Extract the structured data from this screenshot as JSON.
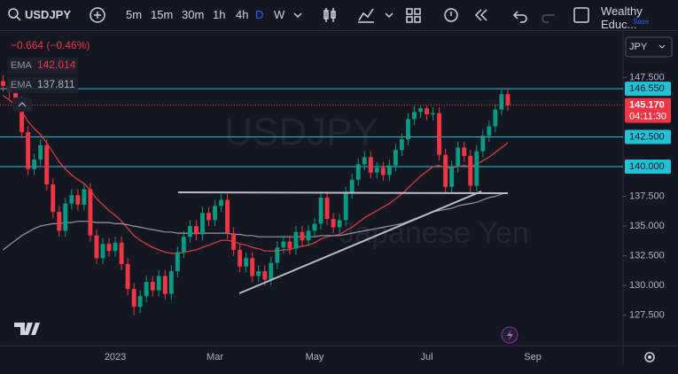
{
  "toolbar": {
    "symbol": "USDJPY",
    "timeframes": [
      "5m",
      "15m",
      "30m",
      "1h",
      "4h",
      "D",
      "W"
    ],
    "active_timeframe": "D",
    "account": "Wealthy Educ...",
    "save": "Save"
  },
  "legend": {
    "change": "−0.664 (−0.46%)",
    "currency": "JPY"
  },
  "chart_data": {
    "type": "candlestick",
    "watermark": [
      "USDJPY",
      "Japanese Yen"
    ],
    "categories": [
      null,
      null,
      null,
      null,
      null,
      null,
      null,
      null,
      null,
      null,
      null,
      null,
      null,
      null,
      null,
      null,
      null,
      null,
      "2023",
      null,
      null,
      null,
      null,
      null,
      null,
      null,
      null,
      null,
      null,
      null,
      null,
      null,
      null,
      null,
      "Mar",
      null,
      null,
      null,
      null,
      null,
      null,
      null,
      null,
      null,
      null,
      null,
      null,
      null,
      null,
      null,
      "May",
      null,
      null,
      null,
      null,
      null,
      null,
      null,
      null,
      null,
      null,
      null,
      null,
      null,
      null,
      null,
      null,
      null,
      "Jul",
      null,
      null,
      null,
      null,
      null,
      null,
      null,
      null,
      null,
      null,
      null,
      null,
      null,
      null,
      null,
      null,
      "Sep",
      null,
      null,
      null,
      null,
      null,
      null,
      null,
      null,
      null,
      null,
      null,
      null,
      null,
      null
    ],
    "open": [
      147.2,
      146.8,
      146.2,
      145.4,
      142.9,
      139.8,
      140.6,
      141.8,
      138.5,
      136.2,
      134.6,
      136.9,
      137.6,
      136.8,
      138.1,
      134.2,
      132.3,
      133.5,
      132.9,
      133.6,
      131.8,
      129.7,
      128.2,
      129.1,
      130.3,
      129.6,
      130.8,
      129.3,
      131.2,
      132.8,
      134.1,
      135.0,
      134.3,
      136.1,
      135.5,
      136.7,
      137.2,
      134.4,
      133.0,
      131.6,
      132.3,
      130.8,
      131.2,
      130.5,
      131.9,
      133.2,
      133.7,
      133.1,
      134.5,
      133.8,
      134.6,
      135.2,
      137.4,
      135.6,
      134.9,
      135.5,
      137.8,
      138.9,
      140.2,
      140.8,
      139.5,
      139.9,
      139.3,
      140.1,
      141.4,
      142.3,
      144.0,
      144.6,
      144.9,
      144.4,
      144.5,
      141.0,
      138.3,
      140.0,
      141.6,
      140.9,
      138.4,
      141.3,
      142.6,
      143.4,
      144.8,
      146.1,
      null,
      null,
      null,
      null,
      null,
      null,
      null,
      null,
      null,
      null,
      null,
      null,
      null,
      null,
      null,
      null,
      null,
      null
    ],
    "high": [
      147.7,
      147.3,
      146.7,
      145.9,
      143.4,
      141.1,
      142.3,
      142.3,
      139.0,
      136.7,
      137.4,
      138.1,
      138.1,
      138.6,
      138.6,
      134.7,
      134.0,
      134.0,
      134.1,
      134.1,
      132.3,
      130.2,
      129.6,
      130.8,
      130.8,
      131.3,
      131.3,
      131.7,
      133.3,
      134.6,
      135.5,
      135.5,
      136.6,
      136.6,
      137.2,
      137.7,
      137.7,
      134.9,
      133.5,
      132.8,
      132.8,
      131.7,
      131.7,
      132.4,
      133.7,
      134.2,
      134.2,
      135.0,
      135.0,
      135.1,
      135.7,
      137.9,
      137.9,
      136.1,
      136.0,
      138.3,
      139.4,
      140.7,
      141.3,
      141.3,
      140.4,
      140.4,
      140.6,
      141.9,
      142.8,
      144.5,
      145.1,
      145.1,
      145.1,
      145.0,
      145.0,
      141.5,
      140.5,
      142.1,
      142.1,
      141.4,
      141.8,
      143.1,
      143.9,
      145.3,
      146.6,
      146.6,
      null,
      null,
      null,
      null,
      null,
      null,
      null,
      null,
      null,
      null,
      null,
      null,
      null,
      null,
      null,
      null,
      null,
      null
    ],
    "low": [
      146.3,
      145.7,
      144.9,
      142.4,
      139.3,
      139.3,
      140.1,
      138.0,
      135.7,
      134.1,
      134.1,
      136.4,
      136.3,
      136.3,
      133.7,
      131.8,
      131.8,
      132.4,
      132.4,
      131.3,
      129.2,
      127.5,
      127.7,
      128.6,
      129.1,
      129.1,
      128.8,
      128.8,
      130.7,
      132.3,
      133.6,
      133.8,
      133.8,
      135.0,
      135.0,
      136.2,
      133.9,
      132.5,
      131.1,
      131.1,
      130.3,
      130.3,
      130.0,
      130.0,
      131.4,
      132.7,
      132.6,
      132.6,
      133.3,
      133.3,
      134.1,
      134.7,
      135.1,
      134.4,
      134.4,
      135.0,
      137.3,
      138.4,
      139.7,
      139.0,
      139.0,
      138.8,
      138.8,
      139.6,
      140.9,
      141.8,
      143.5,
      144.1,
      143.9,
      143.9,
      140.5,
      137.7,
      137.8,
      139.5,
      140.4,
      137.8,
      137.9,
      140.8,
      142.1,
      142.9,
      144.3,
      144.7,
      null,
      null,
      null,
      null,
      null,
      null,
      null,
      null,
      null,
      null,
      null,
      null,
      null,
      null,
      null,
      null,
      null,
      null
    ],
    "close": [
      146.8,
      146.2,
      145.4,
      142.9,
      139.8,
      140.6,
      141.8,
      138.5,
      136.2,
      134.6,
      136.9,
      137.6,
      136.8,
      138.1,
      134.2,
      132.3,
      133.5,
      132.9,
      133.6,
      131.8,
      129.7,
      128.2,
      129.1,
      130.3,
      129.6,
      130.8,
      129.3,
      131.2,
      132.8,
      134.1,
      135.0,
      134.3,
      136.1,
      135.5,
      136.7,
      137.2,
      134.4,
      133.0,
      131.6,
      132.3,
      130.8,
      131.2,
      130.5,
      131.9,
      133.2,
      133.7,
      133.1,
      134.5,
      133.8,
      134.6,
      135.2,
      137.4,
      135.6,
      134.9,
      135.5,
      137.8,
      138.9,
      140.2,
      140.8,
      139.5,
      139.9,
      139.3,
      140.1,
      141.4,
      142.3,
      144.0,
      144.6,
      144.9,
      144.4,
      144.5,
      141.0,
      138.3,
      140.0,
      141.6,
      140.9,
      138.4,
      141.3,
      142.6,
      143.4,
      144.8,
      146.1,
      145.17,
      null,
      null,
      null,
      null,
      null,
      null,
      null,
      null,
      null,
      null,
      null,
      null,
      null,
      null,
      null,
      null,
      null,
      null
    ],
    "up_color": "#089981",
    "down_color": "#f23645",
    "series": [
      {
        "name": "EMA",
        "color": "#e0403f",
        "values": [
          146.0,
          145.6,
          145.2,
          144.6,
          143.8,
          143.2,
          142.7,
          142.0,
          141.2,
          140.4,
          139.8,
          139.3,
          138.9,
          138.6,
          138.0,
          137.3,
          136.8,
          136.3,
          135.9,
          135.4,
          134.8,
          134.2,
          133.8,
          133.5,
          133.2,
          133.0,
          132.8,
          132.7,
          132.7,
          132.8,
          132.9,
          133.0,
          133.2,
          133.4,
          133.6,
          133.8,
          133.8,
          133.7,
          133.5,
          133.4,
          133.2,
          133.1,
          132.9,
          132.9,
          132.9,
          133.0,
          133.0,
          133.2,
          133.3,
          133.4,
          133.6,
          133.9,
          134.1,
          134.2,
          134.3,
          134.6,
          134.9,
          135.3,
          135.7,
          136.0,
          136.3,
          136.6,
          136.9,
          137.3,
          137.7,
          138.2,
          138.7,
          139.2,
          139.6,
          140.0,
          140.1,
          139.9,
          139.9,
          140.0,
          140.1,
          140.0,
          140.2,
          140.5,
          140.8,
          141.2,
          141.6,
          142.014,
          null,
          null,
          null,
          null,
          null,
          null,
          null,
          null,
          null,
          null,
          null,
          null,
          null,
          null,
          null,
          null,
          null,
          null
        ]
      },
      {
        "name": "EMA",
        "color": "#9598a1",
        "values": [
          133.0,
          133.4,
          133.8,
          134.2,
          134.5,
          134.8,
          135.0,
          135.1,
          135.2,
          135.2,
          135.3,
          135.3,
          135.4,
          135.4,
          135.4,
          135.3,
          135.3,
          135.3,
          135.2,
          135.2,
          135.1,
          135.0,
          134.9,
          134.8,
          134.7,
          134.6,
          134.5,
          134.5,
          134.4,
          134.4,
          134.4,
          134.4,
          134.4,
          134.4,
          134.4,
          134.4,
          134.4,
          134.3,
          134.3,
          134.2,
          134.2,
          134.1,
          134.1,
          134.1,
          134.1,
          134.1,
          134.1,
          134.1,
          134.1,
          134.1,
          134.1,
          134.2,
          134.2,
          134.2,
          134.2,
          134.3,
          134.4,
          134.5,
          134.6,
          134.7,
          134.8,
          134.9,
          135.0,
          135.1,
          135.2,
          135.4,
          135.6,
          135.8,
          136.0,
          136.2,
          136.3,
          136.4,
          136.5,
          136.7,
          136.8,
          136.9,
          137.0,
          137.2,
          137.4,
          137.5,
          137.7,
          137.811,
          null,
          null,
          null,
          null,
          null,
          null,
          null,
          null,
          null,
          null,
          null,
          null,
          null,
          null,
          null,
          null,
          null,
          null
        ]
      }
    ],
    "levels": [
      {
        "value": 146.55,
        "label": "146.550"
      },
      {
        "value": 142.5,
        "label": "142.500"
      },
      {
        "value": 140,
        "label": "140.000"
      }
    ],
    "level_color": "#22c1d6",
    "last_price_label": "145.170",
    "countdown": "04:11:30",
    "ylim": [
      124.94,
      151.41
    ],
    "yticks": [
      {
        "value": 147.5,
        "label": "147.500"
      },
      {
        "value": 137.5,
        "label": "137.500"
      },
      {
        "value": 135,
        "label": "135.000"
      },
      {
        "value": 132.5,
        "label": "132.500"
      },
      {
        "value": 130,
        "label": "130.000"
      },
      {
        "value": 127.5,
        "label": "127.500"
      }
    ]
  }
}
